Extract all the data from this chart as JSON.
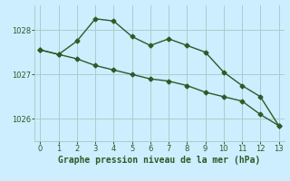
{
  "line1_x": [
    0,
    1,
    2,
    3,
    4,
    5,
    6,
    7,
    8,
    9,
    10,
    11,
    12,
    13
  ],
  "line1_y": [
    1027.55,
    1027.45,
    1027.75,
    1028.25,
    1028.2,
    1027.85,
    1027.65,
    1027.8,
    1027.65,
    1027.5,
    1027.05,
    1026.75,
    1026.5,
    1025.85
  ],
  "line2_x": [
    0,
    1,
    2,
    3,
    4,
    5,
    6,
    7,
    8,
    9,
    10,
    11,
    12,
    13
  ],
  "line2_y": [
    1027.55,
    1027.45,
    1027.35,
    1027.2,
    1027.1,
    1027.0,
    1026.9,
    1026.85,
    1026.75,
    1026.6,
    1026.5,
    1026.4,
    1026.1,
    1025.85
  ],
  "line_color": "#2d5a27",
  "bg_color": "#cceeff",
  "grid_color": "#aacccc",
  "xlabel": "Graphe pression niveau de la mer (hPa)",
  "ylim": [
    1025.5,
    1028.55
  ],
  "xlim": [
    -0.3,
    13.3
  ],
  "yticks": [
    1026,
    1027,
    1028
  ],
  "xticks": [
    0,
    1,
    2,
    3,
    4,
    5,
    6,
    7,
    8,
    9,
    10,
    11,
    12,
    13
  ],
  "tick_color": "#2d5a27",
  "xlabel_color": "#2d5a27",
  "xlabel_fontsize": 7.0,
  "tick_labelsize": 6.0
}
